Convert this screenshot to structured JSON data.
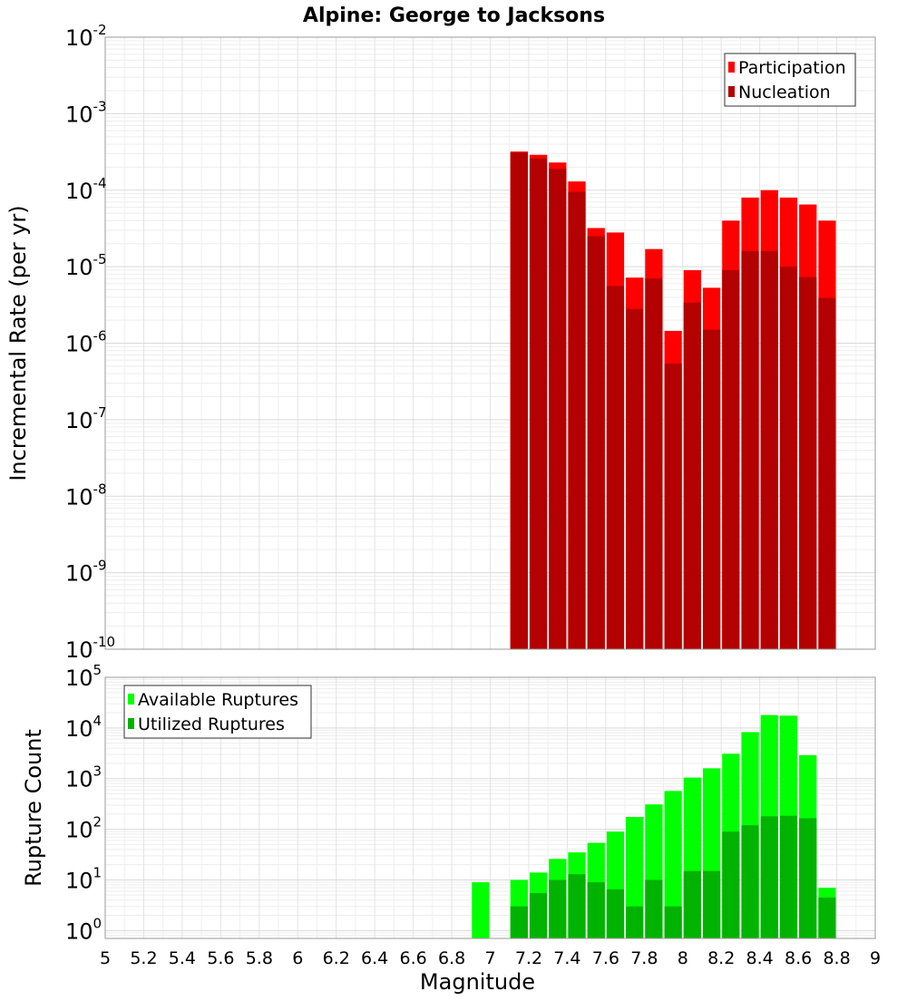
{
  "chart_data": [
    {
      "type": "bar",
      "title": "Alpine: George to Jacksons",
      "xlabel": "",
      "ylabel": "Incremental Rate (per yr)",
      "yscale": "log",
      "ylim": [
        1e-10,
        0.01
      ],
      "xlim": [
        5,
        9
      ],
      "grid": true,
      "legend_position": "top-right",
      "bar_width": 0.1,
      "y_ticks": [
        {
          "base": "10",
          "exp": "-10"
        },
        {
          "base": "10",
          "exp": "-9"
        },
        {
          "base": "10",
          "exp": "-8"
        },
        {
          "base": "10",
          "exp": "-7"
        },
        {
          "base": "10",
          "exp": "-6"
        },
        {
          "base": "10",
          "exp": "-5"
        },
        {
          "base": "10",
          "exp": "-4"
        },
        {
          "base": "10",
          "exp": "-3"
        },
        {
          "base": "10",
          "exp": "-2"
        }
      ],
      "x": [
        7.15,
        7.25,
        7.35,
        7.45,
        7.55,
        7.65,
        7.75,
        7.85,
        7.95,
        8.05,
        8.15,
        8.25,
        8.35,
        8.45,
        8.55,
        8.65,
        8.75
      ],
      "series": [
        {
          "name": "Participation",
          "color": "#ff0000",
          "values": [
            0.00032,
            0.00029,
            0.00023,
            0.00013,
            3.2e-05,
            2.8e-05,
            7.2e-06,
            1.7e-05,
            1.45e-06,
            9e-06,
            5.3e-06,
            4e-05,
            8e-05,
            0.0001,
            8e-05,
            6.5e-05,
            4e-05
          ]
        },
        {
          "name": "Nucleation",
          "color": "#b30000",
          "values": [
            0.00031,
            0.00026,
            0.00019,
            9.5e-05,
            2.5e-05,
            5.6e-06,
            2.8e-06,
            7e-06,
            5.4e-07,
            3.4e-06,
            1.5e-06,
            9e-06,
            1.6e-05,
            1.6e-05,
            1e-05,
            7.3e-06,
            3.9e-06
          ]
        }
      ]
    },
    {
      "type": "bar",
      "title": "",
      "xlabel": "Magnitude",
      "ylabel": "Rupture Count",
      "yscale": "log",
      "ylim": [
        0.7,
        100000.0
      ],
      "xlim": [
        5,
        9
      ],
      "grid": true,
      "legend_position": "top-left",
      "bar_width": 0.1,
      "y_ticks": [
        {
          "base": "10",
          "exp": "0"
        },
        {
          "base": "10",
          "exp": "1"
        },
        {
          "base": "10",
          "exp": "2"
        },
        {
          "base": "10",
          "exp": "3"
        },
        {
          "base": "10",
          "exp": "4"
        },
        {
          "base": "10",
          "exp": "5"
        }
      ],
      "x_ticks": [
        "5",
        "5.2",
        "5.4",
        "5.6",
        "5.8",
        "6",
        "6.2",
        "6.4",
        "6.6",
        "6.8",
        "7",
        "7.2",
        "7.4",
        "7.6",
        "7.8",
        "8",
        "8.2",
        "8.4",
        "8.6",
        "8.8",
        "9"
      ],
      "x": [
        6.95,
        7.15,
        7.25,
        7.35,
        7.45,
        7.55,
        7.65,
        7.75,
        7.85,
        7.95,
        8.05,
        8.15,
        8.25,
        8.35,
        8.45,
        8.55,
        8.65,
        8.75
      ],
      "series": [
        {
          "name": "Available Ruptures",
          "color": "#00ff00",
          "values": [
            9,
            10,
            14,
            26,
            35,
            54,
            90,
            175,
            310,
            570,
            1050,
            1600,
            3100,
            8300,
            18000,
            17500,
            2900,
            7
          ]
        },
        {
          "name": "Utilized Ruptures",
          "color": "#00b300",
          "values": [
            null,
            3,
            5.5,
            10,
            13,
            9,
            6.5,
            3,
            10,
            3,
            15,
            15,
            90,
            120,
            180,
            185,
            165,
            4.5
          ]
        }
      ]
    }
  ]
}
